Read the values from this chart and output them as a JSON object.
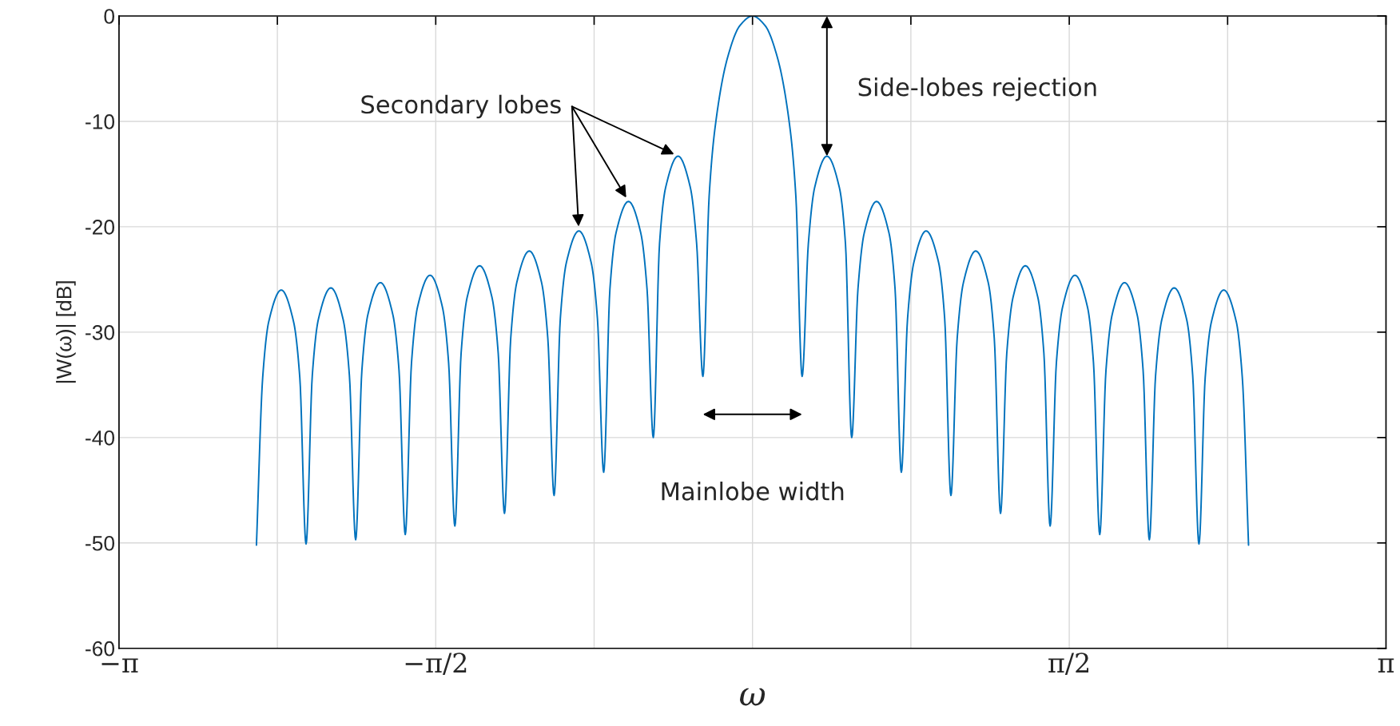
{
  "chart_data": {
    "type": "line",
    "xlabel": "ω",
    "ylabel": "|W(ω)| [dB]",
    "x": [
      -2.46,
      -2.429,
      -2.399,
      -2.337,
      -2.276,
      -2.245,
      -2.214,
      -2.183,
      -2.153,
      -2.091,
      -2.03,
      -1.999,
      -1.968,
      -1.937,
      -1.907,
      -1.845,
      -1.784,
      -1.753,
      -1.722,
      -1.691,
      -1.661,
      -1.599,
      -1.538,
      -1.507,
      -1.476,
      -1.445,
      -1.415,
      -1.353,
      -1.292,
      -1.261,
      -1.23,
      -1.199,
      -1.169,
      -1.107,
      -1.046,
      -1.015,
      -0.984,
      -0.953,
      -0.923,
      -0.861,
      -0.8,
      -0.769,
      -0.738,
      -0.707,
      -0.677,
      -0.615,
      -0.554,
      -0.523,
      -0.492,
      -0.461,
      -0.431,
      -0.369,
      -0.308,
      -0.277,
      -0.246,
      -0.215,
      -0.185,
      -0.123,
      -0.062,
      0,
      0.062,
      0.123,
      0.185,
      0.215,
      0.246,
      0.277,
      0.308,
      0.369,
      0.431,
      0.461,
      0.492,
      0.523,
      0.554,
      0.615,
      0.677,
      0.707,
      0.738,
      0.769,
      0.8,
      0.861,
      0.923,
      0.953,
      0.984,
      1.015,
      1.046,
      1.107,
      1.169,
      1.199,
      1.23,
      1.261,
      1.292,
      1.353,
      1.415,
      1.445,
      1.476,
      1.507,
      1.538,
      1.599,
      1.661,
      1.691,
      1.722,
      1.753,
      1.784,
      1.845,
      1.907,
      1.937,
      1.968,
      1.999,
      2.03,
      2.091,
      2.153,
      2.183,
      2.214,
      2.245,
      2.276,
      2.337,
      2.399,
      2.429,
      2.46
    ],
    "series": [
      {
        "color": "#0072bd",
        "values": [
          -50.2,
          -34.3,
          -29.0,
          -26.0,
          -29.0,
          -34.3,
          -50.1,
          -34.1,
          -28.8,
          -25.8,
          -28.8,
          -34.1,
          -49.7,
          -33.6,
          -28.3,
          -25.3,
          -28.3,
          -33.6,
          -49.2,
          -32.9,
          -27.6,
          -24.6,
          -27.6,
          -32.9,
          -48.4,
          -32.0,
          -26.7,
          -23.7,
          -26.7,
          -32.0,
          -47.2,
          -30.6,
          -25.3,
          -22.3,
          -25.3,
          -30.6,
          -45.5,
          -28.7,
          -23.4,
          -20.4,
          -23.4,
          -28.7,
          -43.3,
          -25.9,
          -20.6,
          -17.6,
          -20.6,
          -25.9,
          -40.0,
          -21.6,
          -16.3,
          -13.3,
          -16.3,
          -21.6,
          -34.2,
          -17.1,
          -10.5,
          -3.9,
          -0.9,
          0,
          -0.9,
          -3.9,
          -10.5,
          -17.1,
          -34.2,
          -21.6,
          -16.3,
          -13.3,
          -16.3,
          -21.6,
          -40.0,
          -25.9,
          -20.6,
          -17.6,
          -20.6,
          -25.9,
          -43.3,
          -28.7,
          -23.4,
          -20.4,
          -23.4,
          -28.7,
          -45.5,
          -30.6,
          -25.3,
          -22.3,
          -25.3,
          -30.6,
          -47.2,
          -32.0,
          -26.7,
          -23.7,
          -26.7,
          -32.0,
          -48.4,
          -32.9,
          -27.6,
          -24.6,
          -27.6,
          -32.9,
          -49.2,
          -33.6,
          -28.3,
          -25.3,
          -28.3,
          -33.6,
          -49.7,
          -34.1,
          -28.8,
          -25.8,
          -28.8,
          -34.1,
          -50.1,
          -34.3,
          -29.0,
          -26.0,
          -29.0,
          -34.3,
          -50.2
        ]
      }
    ],
    "xlim": [
      -3.1416,
      3.1416
    ],
    "xticks": [
      {
        "value": -3.1416,
        "label": "−π"
      },
      {
        "value": -2.3562,
        "label": null
      },
      {
        "value": -1.5708,
        "label": "−π/2"
      },
      {
        "value": -0.7854,
        "label": null
      },
      {
        "value": 0,
        "label": null
      },
      {
        "value": 0.7854,
        "label": null
      },
      {
        "value": 1.5708,
        "label": "π/2"
      },
      {
        "value": 2.3562,
        "label": null
      },
      {
        "value": 3.1416,
        "label": "π"
      }
    ],
    "ylim": [
      -60,
      0
    ],
    "yticks": [
      -60,
      -50,
      -40,
      -30,
      -20,
      -10,
      0
    ],
    "grid": true,
    "line_style": "solid",
    "marker": "none",
    "annotations": [
      {
        "text": "Secondary lobes",
        "x": -0.615,
        "y": -17.6
      },
      {
        "text": "Side-lobes rejection",
        "x": 0.369,
        "y": -13.3
      },
      "Mainlobe width"
    ]
  }
}
